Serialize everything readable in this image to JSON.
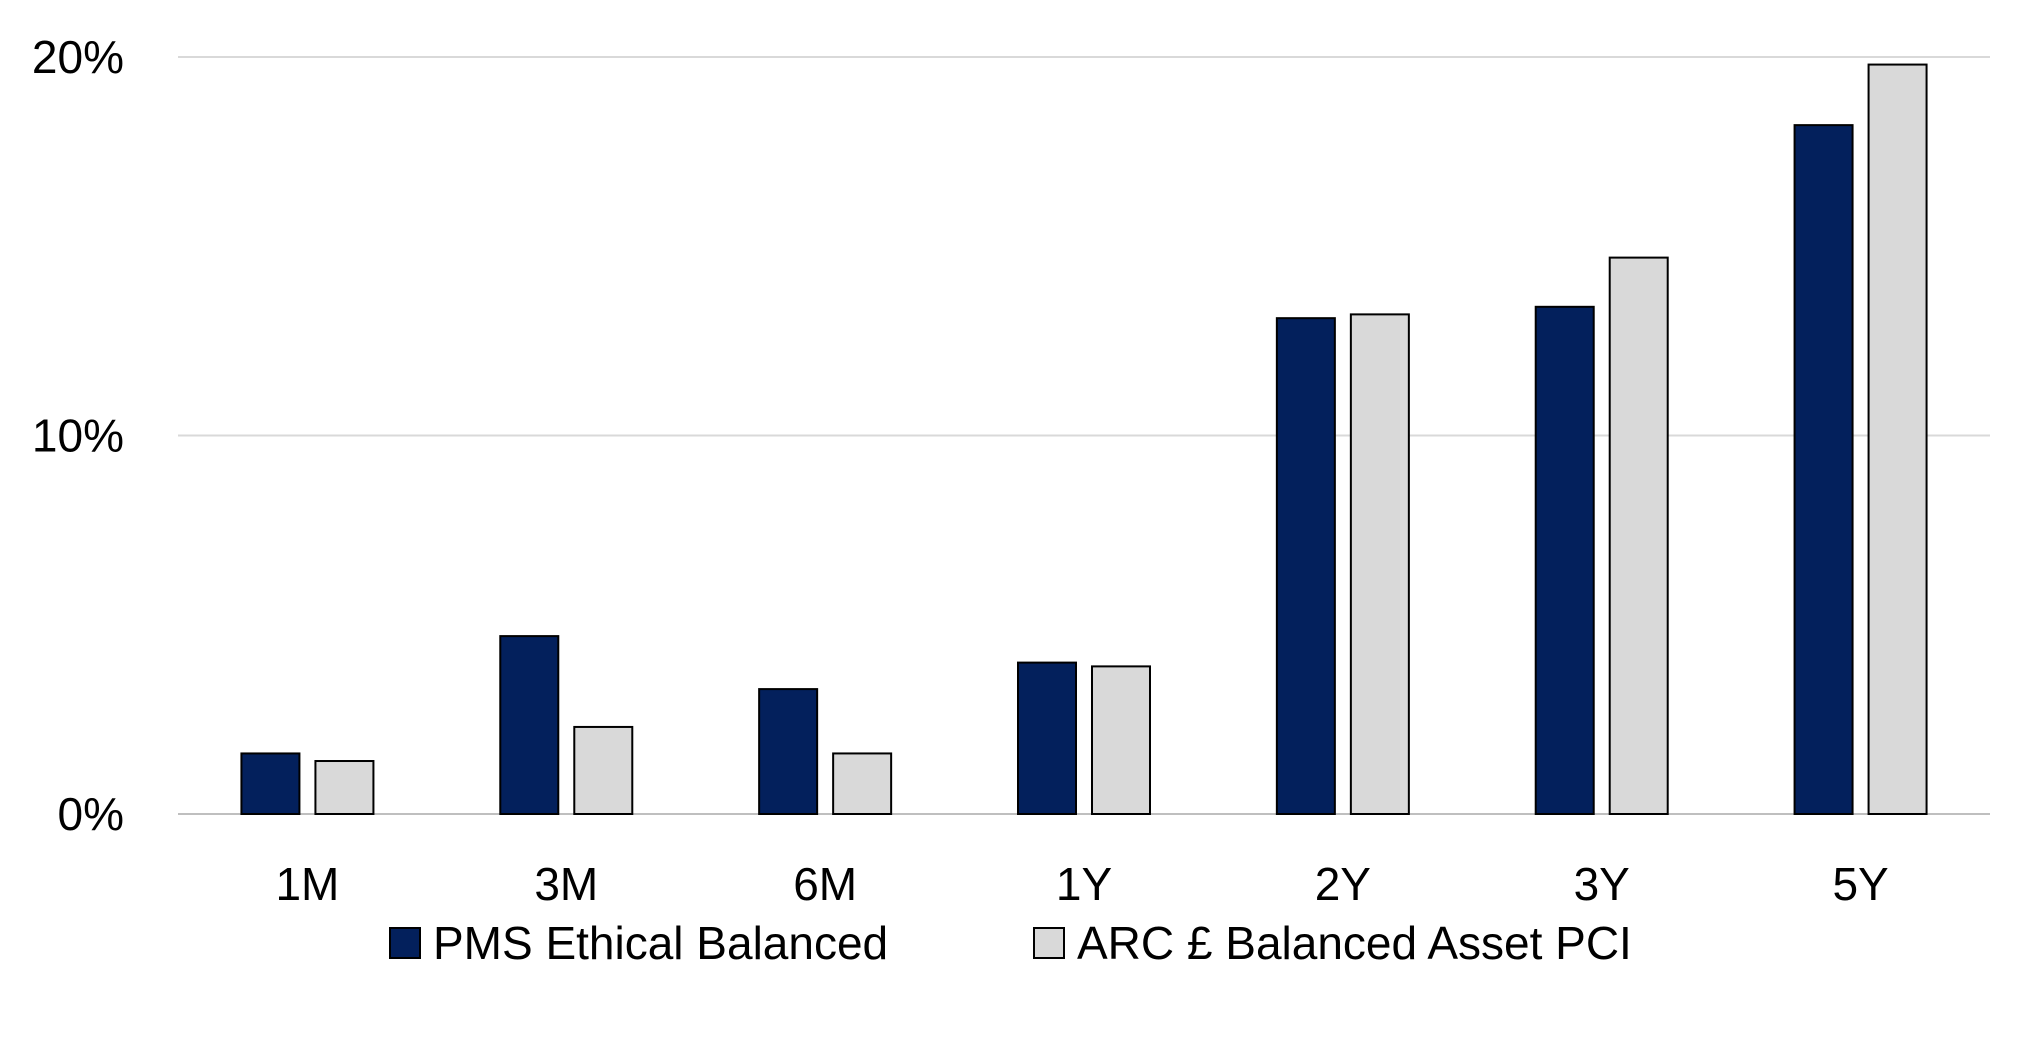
{
  "chart_data": {
    "type": "bar",
    "categories": [
      "1M",
      "3M",
      "6M",
      "1Y",
      "2Y",
      "3Y",
      "5Y"
    ],
    "series": [
      {
        "name": "PMS Ethical Balanced",
        "values": [
          1.6,
          4.7,
          3.3,
          4.0,
          13.1,
          13.4,
          18.2
        ],
        "color": "#03205C"
      },
      {
        "name": "ARC £ Balanced Asset PCI",
        "values": [
          1.4,
          2.3,
          1.6,
          3.9,
          13.2,
          14.7,
          19.8
        ],
        "color": "#D9D9D9"
      }
    ],
    "yticks": [
      {
        "value": 0,
        "label": "0%"
      },
      {
        "value": 10,
        "label": "10%"
      },
      {
        "value": 20,
        "label": "20%"
      }
    ],
    "ylim": [
      0,
      20
    ],
    "grid": true,
    "legend": "bottom"
  }
}
